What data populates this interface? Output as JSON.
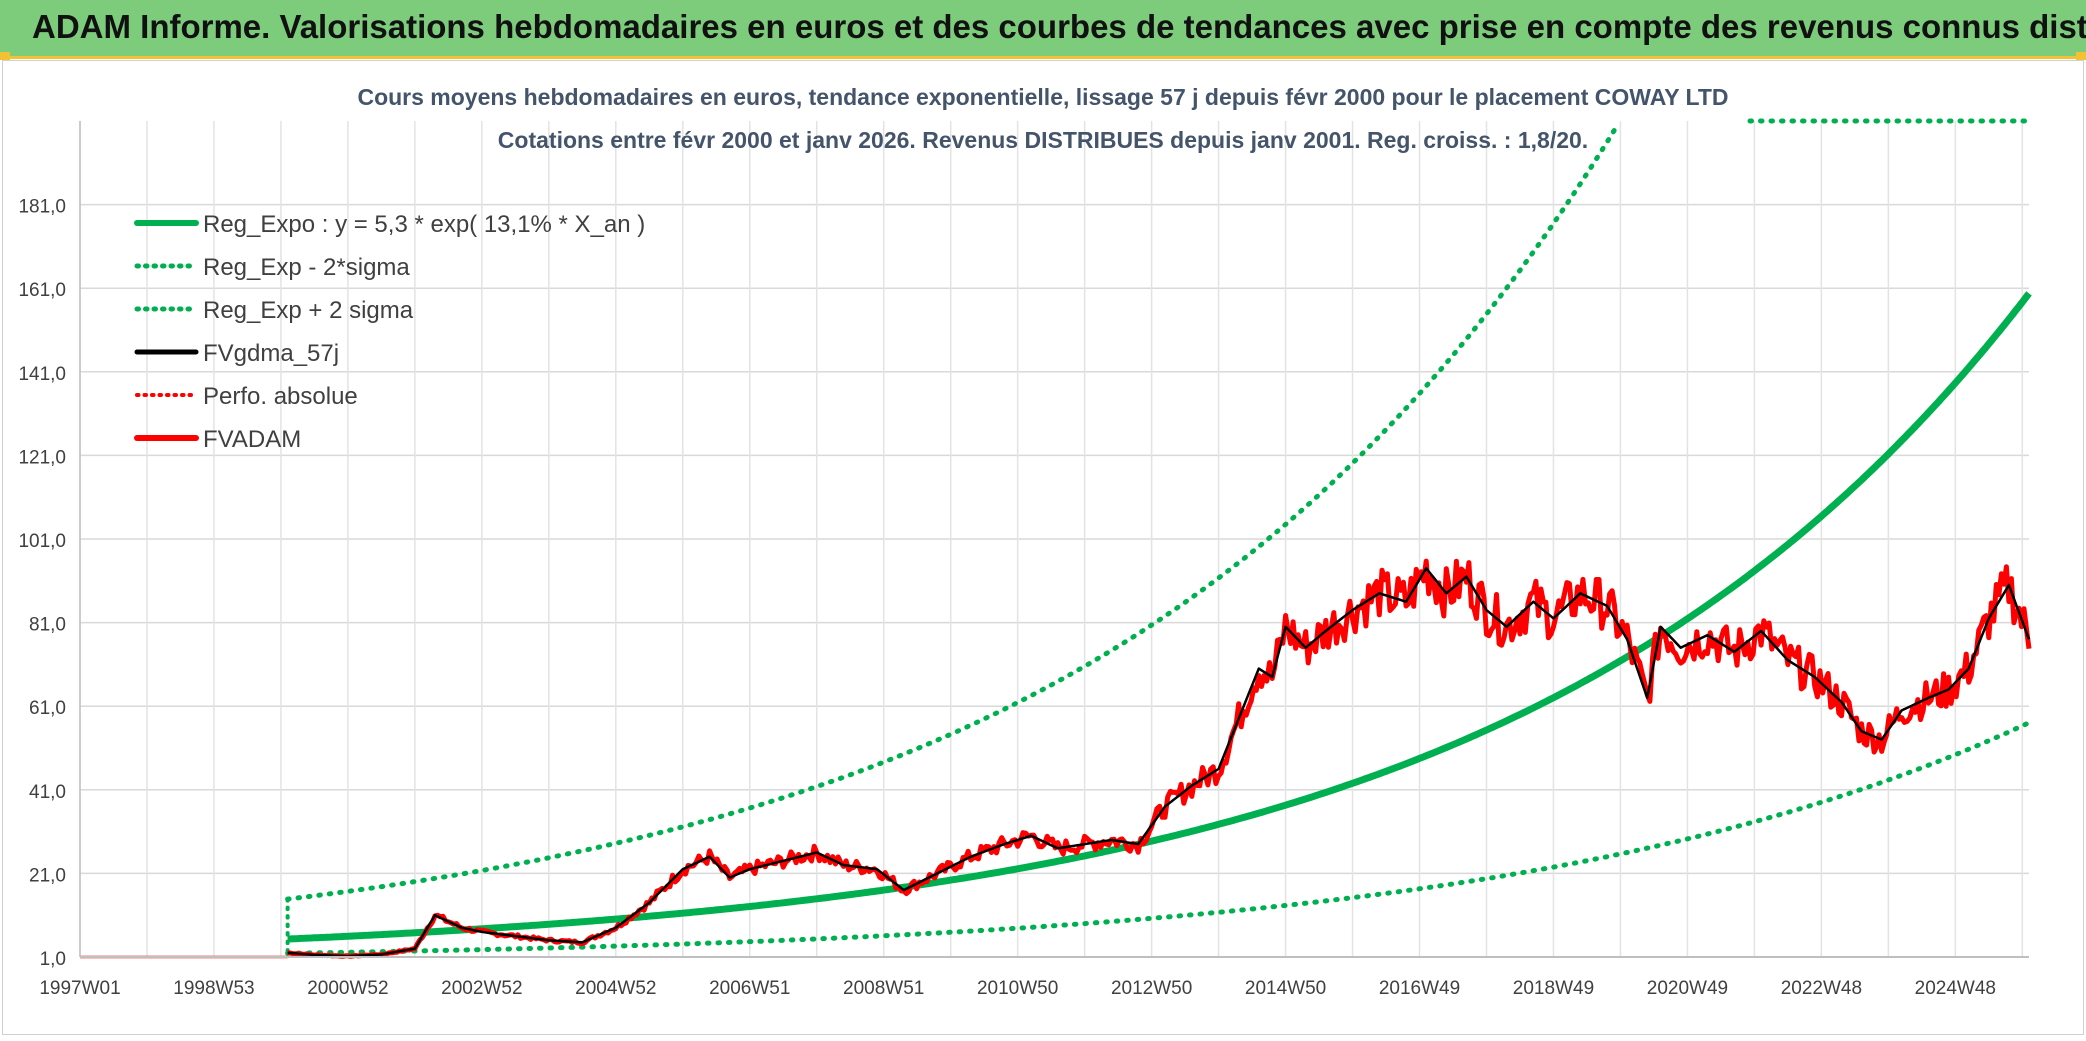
{
  "header": {
    "title": "ADAM Informe. Valorisations hebdomadaires en euros et des courbes de tendances avec prise en compte des revenus connus distribués"
  },
  "colors": {
    "header_bg": "#7ccc7c",
    "accent_border": "#f2c232",
    "trend_green": "#00b050",
    "price_red": "#ff0000",
    "smooth_black": "#000000",
    "title_text": "#44546a"
  },
  "chart_data": {
    "type": "line",
    "title": "Cours moyens hebdomadaires en euros, tendance exponentielle, lissage 57 j depuis févr 2000 pour le placement COWAY LTD",
    "subtitle": "Cotations entre févr 2000 et janv 2026. Revenus DISTRIBUES depuis janv 2001. Reg. croiss. : 1,8/20.",
    "xlabel": "",
    "ylabel": "",
    "ylim": [
      1,
      201
    ],
    "xlim": [
      1997.0,
      2026.1
    ],
    "y_ticks": [
      "1,0",
      "21,0",
      "41,0",
      "61,0",
      "81,0",
      "101,0",
      "121,0",
      "141,0",
      "161,0",
      "181,0"
    ],
    "y_tick_values": [
      1,
      21,
      41,
      61,
      81,
      101,
      121,
      141,
      161,
      181
    ],
    "x_ticks": [
      "1997W01",
      "1998W53",
      "2000W52",
      "2002W52",
      "2004W52",
      "2006W51",
      "2008W51",
      "2010W50",
      "2012W50",
      "2014W50",
      "2016W49",
      "2018W49",
      "2020W49",
      "2022W48",
      "2024W48"
    ],
    "x_tick_values": [
      1997.0,
      1999.0,
      2001.0,
      2003.0,
      2005.0,
      2007.0,
      2009.0,
      2011.0,
      2013.0,
      2015.0,
      2017.0,
      2019.0,
      2021.0,
      2023.0,
      2025.0
    ],
    "grid": true,
    "legend_position": "top-left",
    "regression": {
      "a": 5.3,
      "rate": 0.131,
      "start": 2000.1,
      "end": 2026.1,
      "band_multiplier": 2.8
    },
    "series": [
      {
        "name": "Reg_Expo : y = 5,3 * exp( 13,1% *  X_an )",
        "style": "solid-thick",
        "color": "#00b050"
      },
      {
        "name": "Reg_Exp - 2*sigma",
        "style": "dotted",
        "color": "#00b050"
      },
      {
        "name": "Reg_Exp + 2 sigma",
        "style": "dotted",
        "color": "#00b050"
      },
      {
        "name": "FVgdma_57j",
        "style": "solid",
        "color": "#000000"
      },
      {
        "name": "Perfo. absolue",
        "style": "dotted",
        "color": "#ff0000"
      },
      {
        "name": "FVADAM",
        "style": "solid-thick",
        "color": "#ff0000",
        "flat_value": 1.0,
        "x": [
          2000.1,
          2000.5,
          2001.0,
          2001.5,
          2002.0,
          2002.3,
          2002.7,
          2003.0,
          2003.5,
          2004.0,
          2004.5,
          2005.0,
          2005.5,
          2006.0,
          2006.4,
          2006.7,
          2007.0,
          2007.5,
          2008.0,
          2008.4,
          2008.9,
          2009.3,
          2009.8,
          2010.3,
          2010.8,
          2011.2,
          2011.6,
          2012.0,
          2012.4,
          2012.8,
          2013.2,
          2013.6,
          2014.0,
          2014.3,
          2014.6,
          2014.8,
          2015.0,
          2015.3,
          2015.6,
          2016.0,
          2016.4,
          2016.8,
          2017.1,
          2017.4,
          2017.7,
          2018.0,
          2018.3,
          2018.7,
          2019.0,
          2019.4,
          2019.8,
          2020.1,
          2020.4,
          2020.6,
          2020.9,
          2021.3,
          2021.7,
          2022.1,
          2022.5,
          2022.9,
          2023.3,
          2023.6,
          2023.9,
          2024.2,
          2024.6,
          2024.9,
          2025.2,
          2025.5,
          2025.8,
          2026.1
        ],
        "values": [
          2.0,
          1.5,
          1.2,
          1.6,
          3.0,
          11.0,
          8.0,
          7.0,
          6.0,
          5.0,
          4.5,
          8.0,
          14.0,
          22.0,
          25.0,
          20.0,
          22.0,
          24.0,
          26.0,
          23.0,
          22.0,
          17.0,
          21.0,
          25.0,
          28.0,
          30.0,
          27.0,
          28.0,
          29.0,
          28.0,
          37.0,
          42.0,
          46.0,
          58.0,
          70.0,
          68.0,
          80.0,
          75.0,
          79.0,
          84.0,
          88.0,
          86.0,
          94.0,
          88.0,
          92.0,
          84.0,
          80.0,
          86.0,
          82.0,
          88.0,
          85.0,
          77.0,
          63.0,
          80.0,
          75.0,
          78.0,
          74.0,
          79.0,
          72.0,
          68.0,
          62.0,
          55.0,
          53.0,
          60.0,
          63.0,
          65.0,
          70.0,
          82.0,
          90.0,
          77.0
        ]
      }
    ]
  }
}
